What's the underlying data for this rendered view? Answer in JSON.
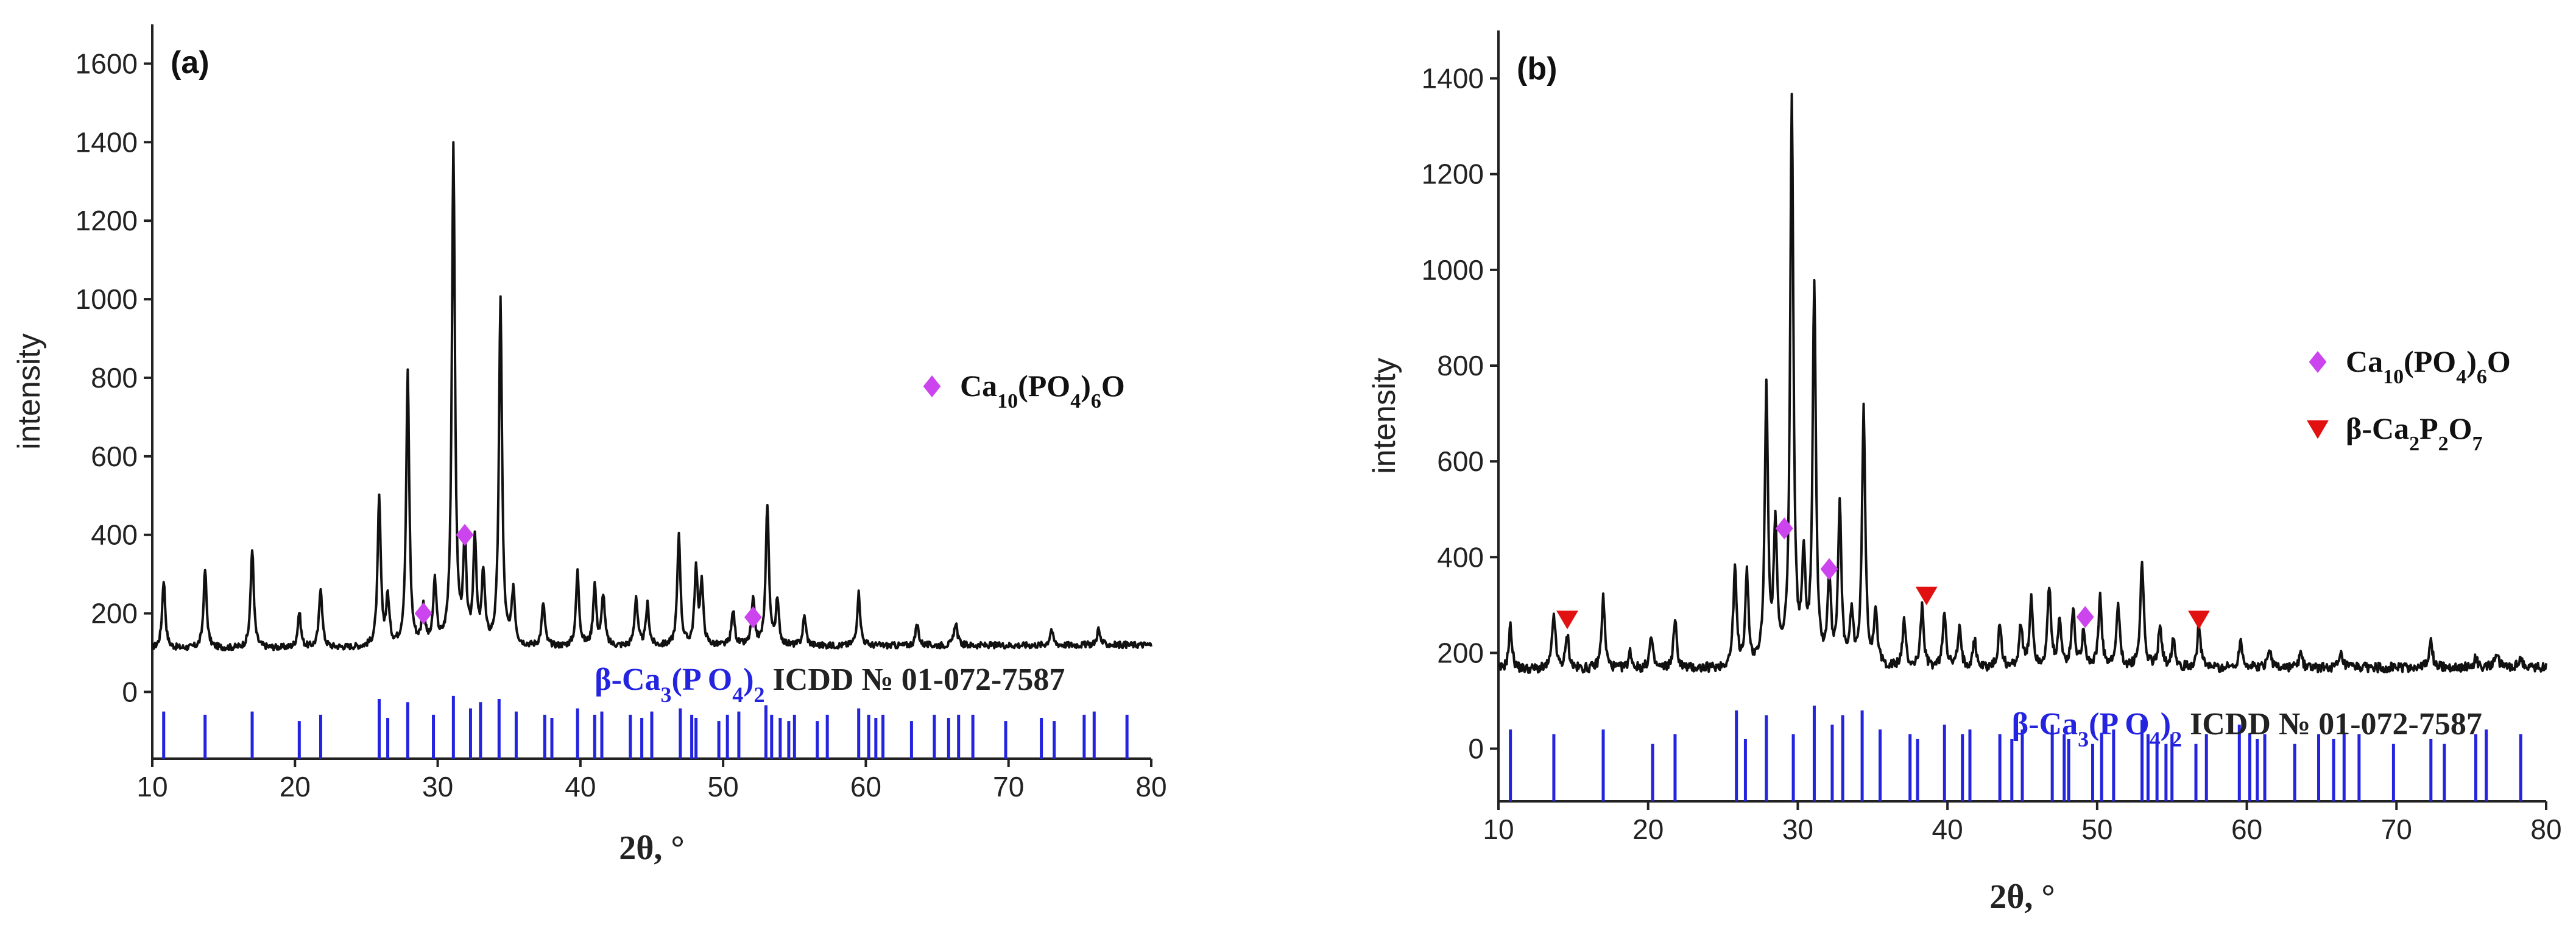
{
  "colors": {
    "pattern": "#111111",
    "reference": "#2424e0",
    "diamond": "#cc44ee",
    "triangle": "#e11111",
    "axis": "#222222"
  },
  "chart_data": [
    {
      "type": "line",
      "panel": "(a)",
      "xlabel": "2θ, °",
      "ylabel": "intensity",
      "xlim": [
        10,
        80
      ],
      "ylim": [
        -170,
        1700
      ],
      "x_ticks": [
        10,
        20,
        30,
        40,
        50,
        60,
        70,
        80
      ],
      "y_ticks": [
        0,
        200,
        400,
        600,
        800,
        1000,
        1200,
        1400,
        1600
      ],
      "baseline_start": 110,
      "baseline_end": 120,
      "noise_amp": 16,
      "peaks": [
        {
          "x": 10.8,
          "y": 285
        },
        {
          "x": 13.7,
          "y": 310
        },
        {
          "x": 17.0,
          "y": 365
        },
        {
          "x": 20.3,
          "y": 200
        },
        {
          "x": 21.8,
          "y": 265
        },
        {
          "x": 25.9,
          "y": 485
        },
        {
          "x": 26.5,
          "y": 230
        },
        {
          "x": 27.9,
          "y": 805
        },
        {
          "x": 29.0,
          "y": 205
        },
        {
          "x": 29.8,
          "y": 270
        },
        {
          "x": 31.1,
          "y": 1375
        },
        {
          "x": 31.9,
          "y": 360
        },
        {
          "x": 32.6,
          "y": 380
        },
        {
          "x": 33.2,
          "y": 290
        },
        {
          "x": 34.4,
          "y": 990
        },
        {
          "x": 35.3,
          "y": 250
        },
        {
          "x": 37.4,
          "y": 220
        },
        {
          "x": 39.8,
          "y": 300
        },
        {
          "x": 41.0,
          "y": 265
        },
        {
          "x": 41.6,
          "y": 240
        },
        {
          "x": 43.9,
          "y": 235
        },
        {
          "x": 44.7,
          "y": 215
        },
        {
          "x": 46.9,
          "y": 395
        },
        {
          "x": 48.1,
          "y": 300
        },
        {
          "x": 48.5,
          "y": 265
        },
        {
          "x": 50.7,
          "y": 200
        },
        {
          "x": 52.1,
          "y": 225
        },
        {
          "x": 53.1,
          "y": 470
        },
        {
          "x": 53.8,
          "y": 220
        },
        {
          "x": 55.7,
          "y": 185
        },
        {
          "x": 59.5,
          "y": 245
        },
        {
          "x": 63.6,
          "y": 165
        },
        {
          "x": 66.3,
          "y": 170
        },
        {
          "x": 73.0,
          "y": 150
        },
        {
          "x": 76.3,
          "y": 150
        }
      ],
      "markers": [
        {
          "symbol": "diamond",
          "x": 29.0,
          "y": 200
        },
        {
          "symbol": "diamond",
          "x": 31.9,
          "y": 400
        },
        {
          "symbol": "diamond",
          "x": 52.1,
          "y": 190
        }
      ],
      "reference_lines": [
        10.8,
        13.7,
        17.0,
        20.3,
        21.8,
        25.9,
        26.5,
        27.9,
        29.7,
        31.1,
        32.3,
        33.0,
        34.3,
        35.5,
        37.5,
        38.0,
        39.8,
        41.0,
        41.5,
        43.5,
        44.3,
        45.0,
        47.0,
        47.8,
        48.1,
        49.7,
        50.3,
        51.1,
        53.0,
        53.4,
        54.0,
        54.6,
        55.0,
        56.6,
        57.3,
        59.5,
        60.2,
        60.7,
        61.2,
        63.2,
        64.8,
        65.8,
        66.5,
        67.5,
        69.8,
        72.3,
        73.2,
        75.3,
        76.0,
        78.3
      ],
      "reference_lengths": [
        0.75,
        0.7,
        0.75,
        0.6,
        0.7,
        0.95,
        0.65,
        0.9,
        0.7,
        1.0,
        0.8,
        0.9,
        0.95,
        0.75,
        0.7,
        0.65,
        0.8,
        0.7,
        0.75,
        0.7,
        0.65,
        0.75,
        0.8,
        0.7,
        0.65,
        0.6,
        0.7,
        0.75,
        0.85,
        0.7,
        0.65,
        0.6,
        0.7,
        0.6,
        0.7,
        0.8,
        0.7,
        0.65,
        0.7,
        0.6,
        0.7,
        0.65,
        0.7,
        0.7,
        0.6,
        0.65,
        0.6,
        0.7,
        0.75,
        0.7
      ],
      "legend": [
        {
          "symbol": "diamond",
          "label": "Ca₁₀(PO₄)₆O"
        }
      ],
      "reference_label": {
        "phase": "β-Ca₃(P O₄)₂",
        "card": "ICDD № 01-072-7587"
      }
    },
    {
      "type": "line",
      "panel": "(b)",
      "xlabel": "2θ, °",
      "ylabel": "intensity",
      "xlim": [
        10,
        80
      ],
      "ylim": [
        -110,
        1500
      ],
      "x_ticks": [
        10,
        20,
        30,
        40,
        50,
        60,
        70,
        80
      ],
      "y_ticks": [
        0,
        200,
        400,
        600,
        800,
        1000,
        1200,
        1400
      ],
      "baseline_start": 165,
      "baseline_end": 170,
      "noise_amp": 20,
      "peaks": [
        {
          "x": 10.8,
          "y": 255
        },
        {
          "x": 13.7,
          "y": 280
        },
        {
          "x": 14.6,
          "y": 235
        },
        {
          "x": 17.0,
          "y": 315
        },
        {
          "x": 18.8,
          "y": 200
        },
        {
          "x": 20.2,
          "y": 230
        },
        {
          "x": 21.8,
          "y": 265
        },
        {
          "x": 25.8,
          "y": 370
        },
        {
          "x": 26.6,
          "y": 355
        },
        {
          "x": 27.9,
          "y": 735
        },
        {
          "x": 28.5,
          "y": 450
        },
        {
          "x": 29.6,
          "y": 1340
        },
        {
          "x": 30.4,
          "y": 380
        },
        {
          "x": 31.1,
          "y": 960
        },
        {
          "x": 32.1,
          "y": 345
        },
        {
          "x": 32.8,
          "y": 500
        },
        {
          "x": 33.6,
          "y": 270
        },
        {
          "x": 34.4,
          "y": 700
        },
        {
          "x": 35.2,
          "y": 285
        },
        {
          "x": 37.1,
          "y": 260
        },
        {
          "x": 38.3,
          "y": 290
        },
        {
          "x": 39.8,
          "y": 285
        },
        {
          "x": 40.8,
          "y": 245
        },
        {
          "x": 41.8,
          "y": 225
        },
        {
          "x": 43.5,
          "y": 255
        },
        {
          "x": 44.9,
          "y": 255
        },
        {
          "x": 45.6,
          "y": 310
        },
        {
          "x": 46.8,
          "y": 330
        },
        {
          "x": 47.5,
          "y": 260
        },
        {
          "x": 48.4,
          "y": 285
        },
        {
          "x": 49.1,
          "y": 245
        },
        {
          "x": 50.2,
          "y": 310
        },
        {
          "x": 51.4,
          "y": 295
        },
        {
          "x": 53.0,
          "y": 390
        },
        {
          "x": 54.2,
          "y": 255
        },
        {
          "x": 55.1,
          "y": 230
        },
        {
          "x": 56.8,
          "y": 255
        },
        {
          "x": 59.6,
          "y": 225
        },
        {
          "x": 61.5,
          "y": 210
        },
        {
          "x": 63.6,
          "y": 195
        },
        {
          "x": 66.3,
          "y": 190
        },
        {
          "x": 72.3,
          "y": 220
        },
        {
          "x": 75.3,
          "y": 185
        },
        {
          "x": 76.7,
          "y": 195
        },
        {
          "x": 78.3,
          "y": 185
        }
      ],
      "markers": [
        {
          "symbol": "diamond",
          "x": 29.1,
          "y": 460
        },
        {
          "symbol": "diamond",
          "x": 32.1,
          "y": 375
        },
        {
          "symbol": "diamond",
          "x": 49.2,
          "y": 275
        },
        {
          "symbol": "triangle",
          "x": 14.6,
          "y": 270
        },
        {
          "symbol": "triangle",
          "x": 38.6,
          "y": 320
        },
        {
          "symbol": "triangle",
          "x": 56.8,
          "y": 270
        }
      ],
      "reference_lines": [
        10.8,
        13.7,
        17.0,
        20.3,
        21.8,
        25.9,
        26.5,
        27.9,
        29.7,
        31.1,
        32.3,
        33.0,
        34.3,
        35.5,
        37.5,
        38.0,
        39.8,
        41.0,
        41.5,
        43.5,
        44.3,
        45.0,
        47.0,
        47.8,
        48.1,
        49.7,
        50.3,
        51.1,
        53.0,
        53.4,
        54.0,
        54.6,
        55.0,
        56.6,
        57.3,
        59.5,
        60.2,
        60.7,
        61.2,
        63.2,
        64.8,
        65.8,
        66.5,
        67.5,
        69.8,
        72.3,
        73.2,
        75.3,
        76.0,
        78.3
      ],
      "reference_lengths": [
        0.75,
        0.7,
        0.75,
        0.6,
        0.7,
        0.95,
        0.65,
        0.9,
        0.7,
        1.0,
        0.8,
        0.9,
        0.95,
        0.75,
        0.7,
        0.65,
        0.8,
        0.7,
        0.75,
        0.7,
        0.65,
        0.75,
        0.8,
        0.7,
        0.65,
        0.6,
        0.7,
        0.75,
        0.85,
        0.7,
        0.65,
        0.6,
        0.7,
        0.6,
        0.7,
        0.8,
        0.7,
        0.65,
        0.7,
        0.6,
        0.7,
        0.65,
        0.7,
        0.7,
        0.6,
        0.65,
        0.6,
        0.7,
        0.75,
        0.7
      ],
      "legend": [
        {
          "symbol": "diamond",
          "label": "Ca₁₀(PO₄)₆O"
        },
        {
          "symbol": "triangle",
          "label": "β-Ca₂P₂O₇"
        }
      ],
      "reference_label": {
        "phase": "β-Ca₃(P O₄)₂",
        "card": "ICDD № 01-072-7587"
      }
    }
  ]
}
